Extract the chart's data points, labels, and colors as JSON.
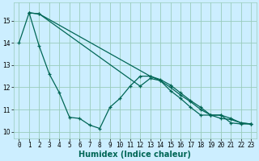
{
  "xlabel": "Humidex (Indice chaleur)",
  "bg_color": "#cceeff",
  "grid_color": "#99ccbb",
  "line_color": "#006655",
  "xlim": [
    -0.5,
    23.5
  ],
  "ylim": [
    9.7,
    15.8
  ],
  "lines": [
    {
      "x": [
        0,
        1,
        2,
        3,
        4,
        5,
        6,
        7,
        8,
        9,
        10,
        11,
        12,
        13,
        14,
        15,
        16,
        17,
        18,
        19,
        20,
        21,
        22,
        23
      ],
      "y": [
        14.0,
        15.35,
        13.85,
        12.6,
        11.75,
        10.65,
        10.6,
        10.3,
        10.15,
        11.1,
        11.5,
        12.05,
        12.5,
        12.5,
        12.3,
        11.85,
        11.5,
        11.1,
        10.75,
        10.75,
        10.75,
        10.4,
        10.35,
        10.35
      ]
    },
    {
      "x": [
        1,
        2,
        13,
        14,
        15,
        16,
        17,
        18,
        19,
        20,
        21,
        22,
        23
      ],
      "y": [
        15.35,
        15.3,
        12.5,
        12.35,
        12.1,
        11.75,
        11.4,
        11.1,
        10.75,
        10.75,
        10.6,
        10.4,
        10.35
      ]
    },
    {
      "x": [
        1,
        2,
        12,
        13,
        14,
        15,
        16,
        17,
        18,
        19,
        20,
        21,
        22,
        23
      ],
      "y": [
        15.35,
        15.3,
        12.05,
        12.4,
        12.3,
        12.0,
        11.65,
        11.35,
        11.0,
        10.75,
        10.6,
        10.55,
        10.4,
        10.35
      ]
    }
  ],
  "xticks": [
    0,
    1,
    2,
    3,
    4,
    5,
    6,
    7,
    8,
    9,
    10,
    11,
    12,
    13,
    14,
    15,
    16,
    17,
    18,
    19,
    20,
    21,
    22,
    23
  ],
  "yticks": [
    10,
    11,
    12,
    13,
    14,
    15
  ],
  "tick_fontsize": 5.5,
  "label_fontsize": 7
}
